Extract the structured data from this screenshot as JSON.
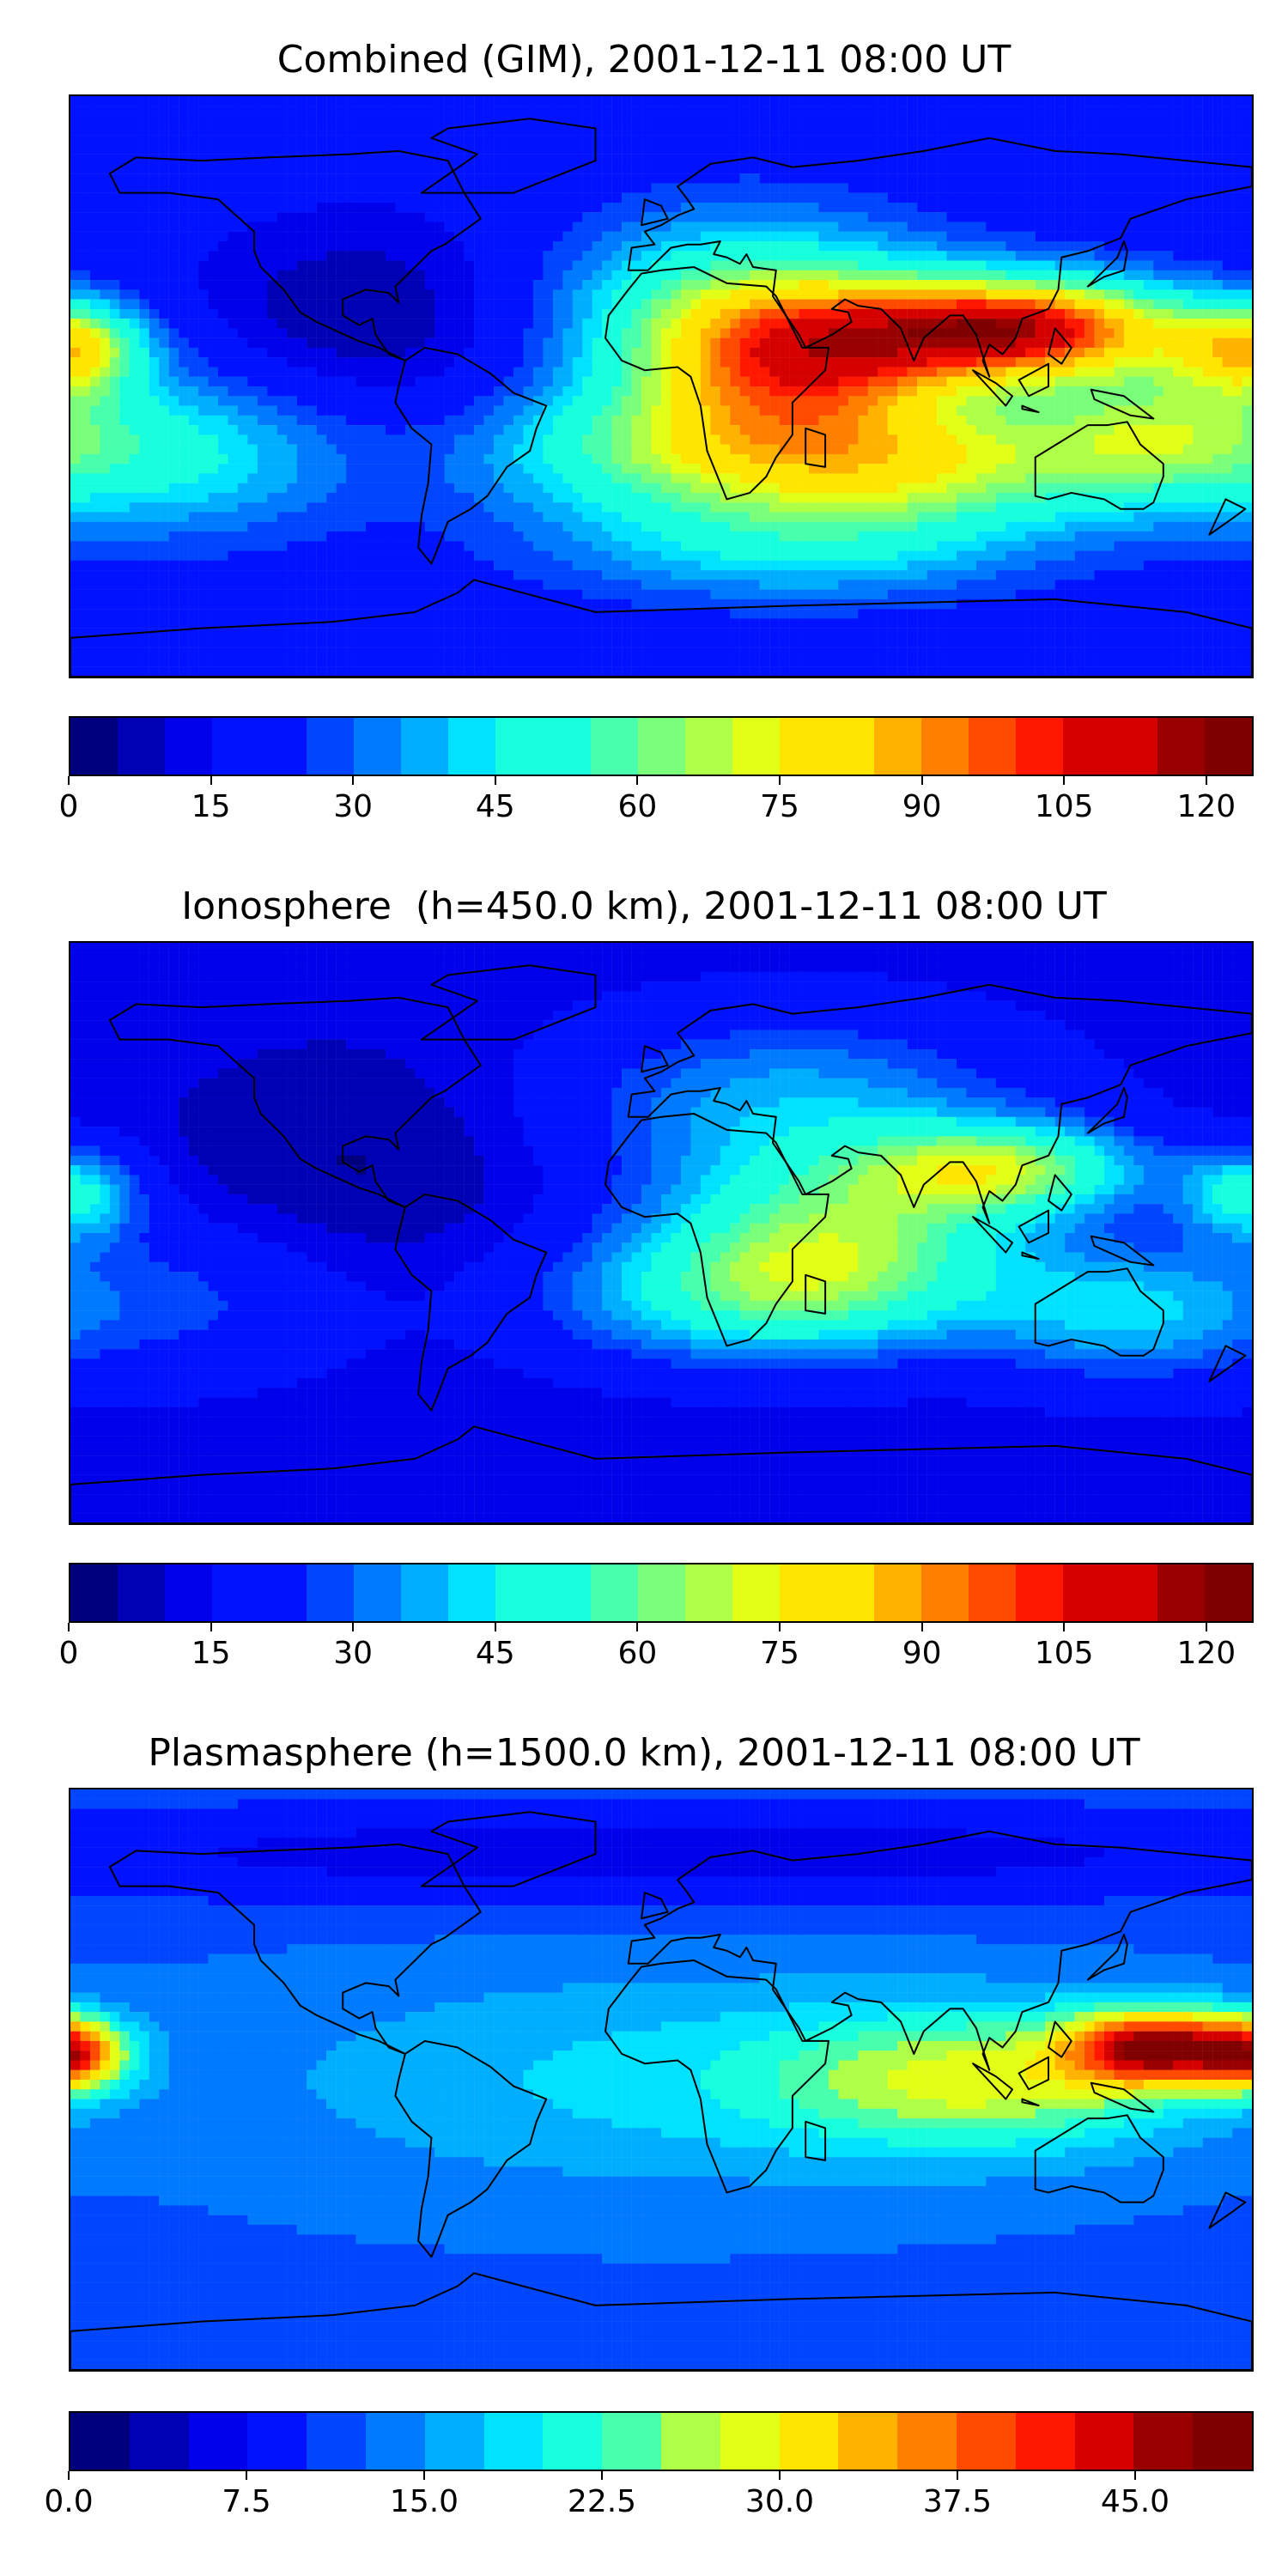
{
  "colormap": [
    "#00007f",
    "#0000b4",
    "#0000ea",
    "#0012ff",
    "#0046ff",
    "#007aff",
    "#00aeff",
    "#00e2ff",
    "#18ffde",
    "#48ffae",
    "#7aff7a",
    "#aeff48",
    "#e2ff18",
    "#ffe500",
    "#ffb200",
    "#ff7f00",
    "#ff4a00",
    "#ff1700",
    "#d50000",
    "#990000",
    "#7f0000"
  ],
  "chart_data": [
    {
      "type": "heatmap",
      "title": "Combined (GIM), 2001-12-11 08:00 UT",
      "colorbar": {
        "min": 0,
        "max": 125,
        "levels": 25,
        "ticks": [
          0,
          15,
          30,
          45,
          60,
          75,
          90,
          105,
          120
        ],
        "tick_labels": [
          "0",
          "15",
          "30",
          "45",
          "60",
          "75",
          "90",
          "105",
          "120"
        ]
      },
      "field": {
        "base": 20,
        "blobs": [
          {
            "lon": 110,
            "lat": 18,
            "amp": 85,
            "sx": 35,
            "sy": 11
          },
          {
            "lon": 45,
            "lat": 8,
            "amp": 55,
            "sx": 35,
            "sy": 16
          },
          {
            "lon": 25,
            "lat": 25,
            "amp": 35,
            "sx": 40,
            "sy": 20
          },
          {
            "lon": 10,
            "lat": -20,
            "amp": 40,
            "sx": 45,
            "sy": 15
          },
          {
            "lon": 80,
            "lat": -25,
            "amp": 40,
            "sx": 40,
            "sy": 14
          },
          {
            "lon": -180,
            "lat": 12,
            "amp": 50,
            "sx": 16,
            "sy": 10
          },
          {
            "lon": -150,
            "lat": -20,
            "amp": 28,
            "sx": 40,
            "sy": 18
          },
          {
            "lon": 150,
            "lat": -15,
            "amp": 35,
            "sx": 30,
            "sy": 15
          },
          {
            "lon": -90,
            "lat": 20,
            "amp": -15,
            "sx": 40,
            "sy": 25
          },
          {
            "lon": 40,
            "lat": -50,
            "amp": 22,
            "sx": 50,
            "sy": 12
          }
        ]
      }
    },
    {
      "type": "heatmap",
      "title": "Ionosphere  (h=450.0 km), 2001-12-11 08:00 UT",
      "colorbar": {
        "min": 0,
        "max": 125,
        "levels": 25,
        "ticks": [
          0,
          15,
          30,
          45,
          60,
          75,
          90,
          105,
          120
        ],
        "tick_labels": [
          "0",
          "15",
          "30",
          "45",
          "60",
          "75",
          "90",
          "105",
          "120"
        ]
      },
      "field": {
        "base": 12,
        "blobs": [
          {
            "lon": 105,
            "lat": 20,
            "amp": 45,
            "sx": 30,
            "sy": 10
          },
          {
            "lon": 55,
            "lat": 0,
            "amp": 40,
            "sx": 40,
            "sy": 18
          },
          {
            "lon": 30,
            "lat": -20,
            "amp": 35,
            "sx": 45,
            "sy": 15
          },
          {
            "lon": 40,
            "lat": 40,
            "amp": 25,
            "sx": 50,
            "sy": 20
          },
          {
            "lon": -180,
            "lat": 12,
            "amp": 35,
            "sx": 15,
            "sy": 10
          },
          {
            "lon": 140,
            "lat": -25,
            "amp": 25,
            "sx": 30,
            "sy": 15
          },
          {
            "lon": -150,
            "lat": -20,
            "amp": 15,
            "sx": 40,
            "sy": 18
          },
          {
            "lon": -90,
            "lat": 20,
            "amp": -8,
            "sx": 40,
            "sy": 25
          }
        ]
      }
    },
    {
      "type": "heatmap",
      "title": "Plasmasphere (h=1500.0 km), 2001-12-11 08:00 UT",
      "colorbar": {
        "min": 0,
        "max": 50,
        "levels": 20,
        "ticks": [
          0,
          7.5,
          15,
          22.5,
          30,
          37.5,
          45
        ],
        "tick_labels": [
          "0.0",
          "7.5",
          "15.0",
          "22.5",
          "30.0",
          "37.5",
          "45.0"
        ]
      },
      "field": {
        "base": 12,
        "blobs": [
          {
            "lon": 150,
            "lat": 10,
            "amp": 30,
            "sx": 18,
            "sy": 8
          },
          {
            "lon": -180,
            "lat": 8,
            "amp": 25,
            "sx": 12,
            "sy": 8
          },
          {
            "lon": 100,
            "lat": 0,
            "amp": 14,
            "sx": 45,
            "sy": 15
          },
          {
            "lon": 0,
            "lat": 0,
            "amp": 6,
            "sx": 90,
            "sy": 25
          },
          {
            "lon": 0,
            "lat": 70,
            "amp": -6,
            "sx": 180,
            "sy": 12
          }
        ]
      }
    }
  ]
}
